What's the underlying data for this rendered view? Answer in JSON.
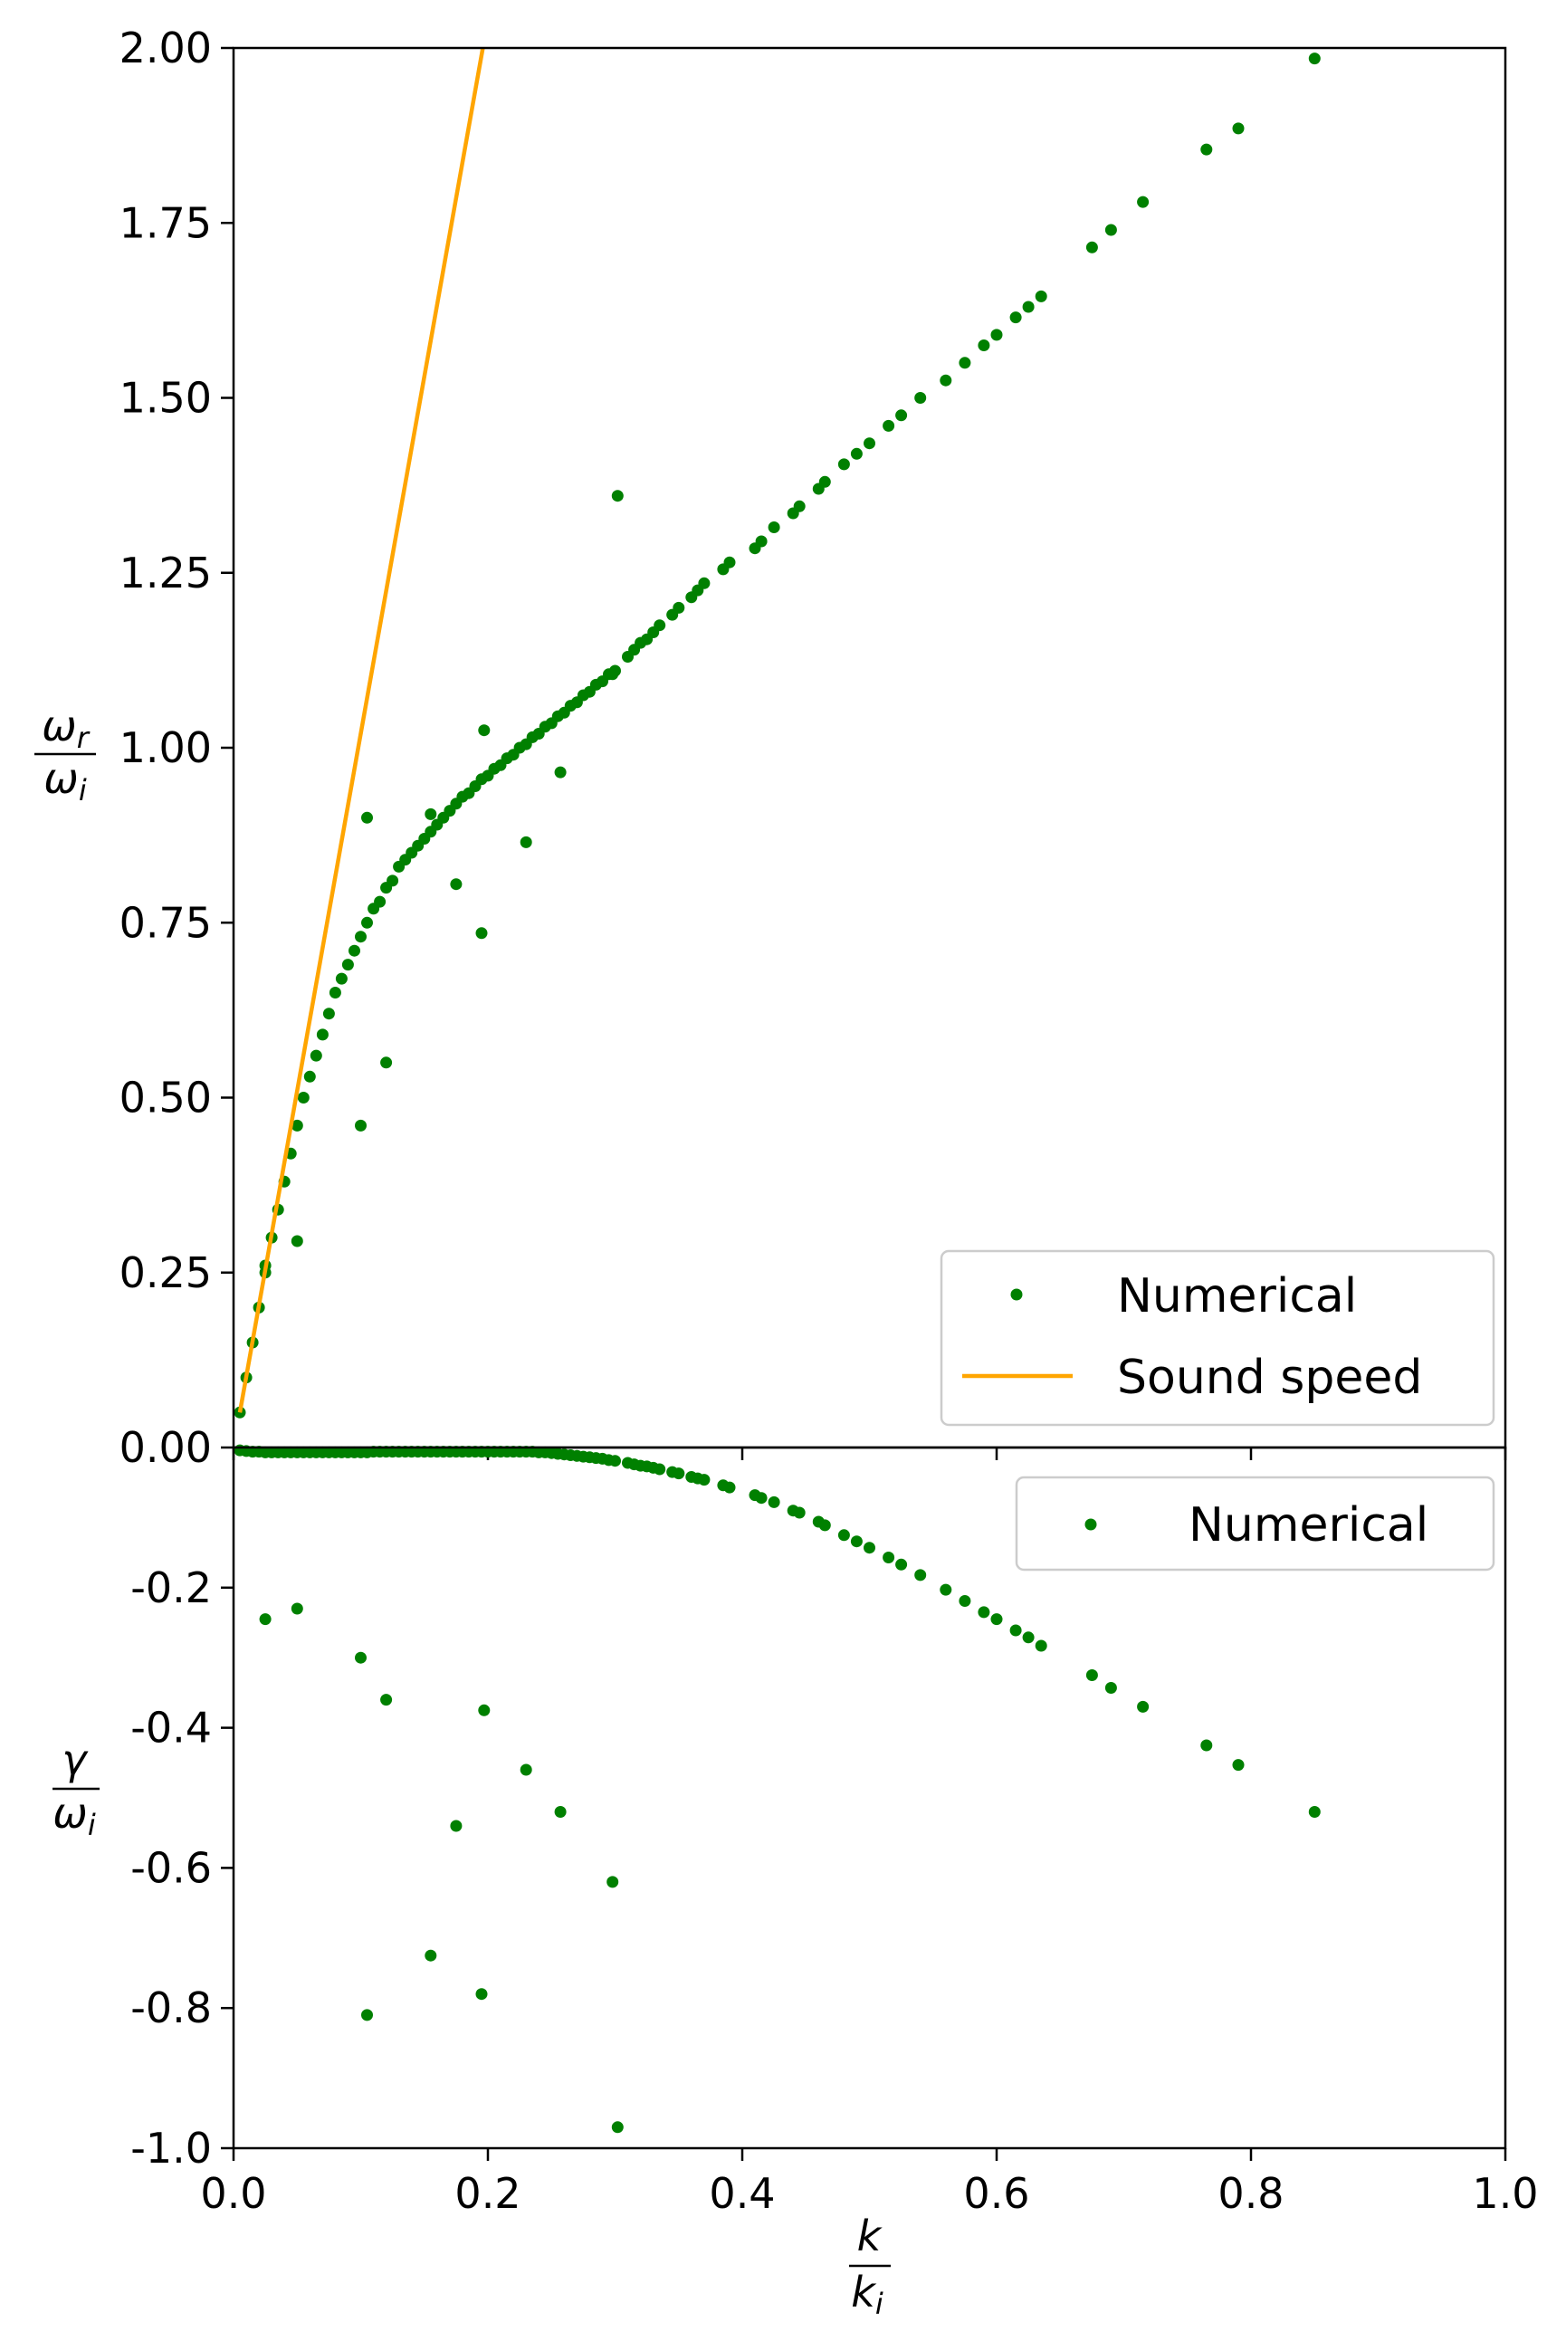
{
  "figure": {
    "top_ylabel": {
      "num_base": "ω",
      "num_sub": "r",
      "den_base": "ω",
      "den_sub": "i"
    },
    "bottom_ylabel": {
      "num_base": "γ",
      "num_sub": "",
      "den_base": "ω",
      "den_sub": "i"
    },
    "xlabel": {
      "num_base": "k",
      "num_sub": "",
      "den_base": "k",
      "den_sub": "i"
    }
  },
  "chart_data": [
    {
      "type": "scatter",
      "panel": "top",
      "title": "",
      "xlim": [
        0.0,
        1.0
      ],
      "ylim": [
        0.0,
        2.0
      ],
      "yticks": [
        0.0,
        0.25,
        0.5,
        0.75,
        1.0,
        1.25,
        1.5,
        1.75,
        2.0
      ],
      "ytick_labels": [
        "0.00",
        "0.25",
        "0.50",
        "0.75",
        "1.00",
        "1.25",
        "1.50",
        "1.75",
        "2.00"
      ],
      "grid": false,
      "legend_position": "lower-right",
      "legend": [
        "Numerical",
        "Sound speed"
      ],
      "series": [
        {
          "name": "Numerical",
          "color": "#008000",
          "x": [
            0.005,
            0.01,
            0.015,
            0.02,
            0.025,
            0.03,
            0.035,
            0.04,
            0.045,
            0.05,
            0.055,
            0.06,
            0.065,
            0.07,
            0.075,
            0.08,
            0.085,
            0.09,
            0.095,
            0.1,
            0.105,
            0.11,
            0.115,
            0.12,
            0.125,
            0.13,
            0.135,
            0.14,
            0.145,
            0.15,
            0.155,
            0.16,
            0.165,
            0.17,
            0.175,
            0.18,
            0.185,
            0.19,
            0.195,
            0.2,
            0.205,
            0.21,
            0.215,
            0.22,
            0.225,
            0.23,
            0.235,
            0.24,
            0.245,
            0.25,
            0.255,
            0.26,
            0.265,
            0.27,
            0.275,
            0.28,
            0.285,
            0.29,
            0.295,
            0.3,
            0.31,
            0.315,
            0.32,
            0.325,
            0.33,
            0.335,
            0.345,
            0.35,
            0.36,
            0.365,
            0.37,
            0.385,
            0.39,
            0.41,
            0.415,
            0.425,
            0.44,
            0.445,
            0.46,
            0.465,
            0.48,
            0.49,
            0.5,
            0.515,
            0.525,
            0.54,
            0.56,
            0.575,
            0.59,
            0.6,
            0.615,
            0.625,
            0.635,
            0.675,
            0.69,
            0.715,
            0.765,
            0.79,
            0.85,
            0.025,
            0.05,
            0.1,
            0.105,
            0.12,
            0.155,
            0.175,
            0.195,
            0.197,
            0.23,
            0.257,
            0.298,
            0.302
          ],
          "y": [
            0.05,
            0.1,
            0.15,
            0.2,
            0.25,
            0.3,
            0.34,
            0.38,
            0.42,
            0.46,
            0.5,
            0.53,
            0.56,
            0.59,
            0.62,
            0.65,
            0.67,
            0.69,
            0.71,
            0.73,
            0.75,
            0.77,
            0.78,
            0.8,
            0.81,
            0.83,
            0.84,
            0.85,
            0.86,
            0.87,
            0.88,
            0.89,
            0.9,
            0.91,
            0.92,
            0.93,
            0.935,
            0.945,
            0.955,
            0.96,
            0.97,
            0.975,
            0.985,
            0.99,
            1.0,
            1.005,
            1.015,
            1.02,
            1.03,
            1.035,
            1.045,
            1.05,
            1.06,
            1.065,
            1.075,
            1.08,
            1.09,
            1.095,
            1.105,
            1.11,
            1.13,
            1.14,
            1.15,
            1.155,
            1.165,
            1.175,
            1.19,
            1.2,
            1.215,
            1.225,
            1.235,
            1.255,
            1.265,
            1.285,
            1.295,
            1.315,
            1.335,
            1.345,
            1.37,
            1.38,
            1.405,
            1.42,
            1.435,
            1.46,
            1.475,
            1.5,
            1.525,
            1.55,
            1.575,
            1.59,
            1.615,
            1.63,
            1.645,
            1.715,
            1.74,
            1.78,
            1.855,
            1.885,
            1.985,
            0.26,
            0.295,
            0.46,
            0.9,
            0.55,
            0.905,
            0.805,
            0.735,
            1.025,
            0.865,
            0.965,
            1.105,
            1.36
          ]
        },
        {
          "name": "Sound speed",
          "color": "#FFA500",
          "x": [
            0.005,
            0.196
          ],
          "y": [
            0.05,
            2.0
          ]
        }
      ]
    },
    {
      "type": "scatter",
      "panel": "bottom",
      "title": "",
      "xlim": [
        0.0,
        1.0
      ],
      "ylim": [
        -1.0,
        0.0
      ],
      "xticks": [
        0.0,
        0.2,
        0.4,
        0.6,
        0.8,
        1.0
      ],
      "xtick_labels": [
        "0.0",
        "0.2",
        "0.4",
        "0.6",
        "0.8",
        "1.0"
      ],
      "yticks": [
        -0.2,
        -0.4,
        -0.6,
        -0.8,
        -1.0
      ],
      "ytick_labels": [
        "-0.2",
        "-0.4",
        "-0.6",
        "-0.8",
        "-1.0"
      ],
      "grid": false,
      "legend_position": "top-right",
      "legend": [
        "Numerical"
      ],
      "series": [
        {
          "name": "Numerical",
          "color": "#008000",
          "x": [
            0.005,
            0.01,
            0.015,
            0.02,
            0.025,
            0.03,
            0.035,
            0.04,
            0.045,
            0.05,
            0.055,
            0.06,
            0.065,
            0.07,
            0.075,
            0.08,
            0.085,
            0.09,
            0.095,
            0.1,
            0.105,
            0.11,
            0.115,
            0.12,
            0.125,
            0.13,
            0.135,
            0.14,
            0.145,
            0.15,
            0.155,
            0.16,
            0.165,
            0.17,
            0.175,
            0.18,
            0.185,
            0.19,
            0.195,
            0.2,
            0.205,
            0.21,
            0.215,
            0.22,
            0.225,
            0.23,
            0.235,
            0.24,
            0.245,
            0.25,
            0.255,
            0.26,
            0.265,
            0.27,
            0.275,
            0.28,
            0.285,
            0.29,
            0.295,
            0.3,
            0.31,
            0.315,
            0.32,
            0.325,
            0.33,
            0.335,
            0.345,
            0.35,
            0.36,
            0.365,
            0.37,
            0.385,
            0.39,
            0.41,
            0.415,
            0.425,
            0.44,
            0.445,
            0.46,
            0.465,
            0.48,
            0.49,
            0.5,
            0.515,
            0.525,
            0.54,
            0.56,
            0.575,
            0.59,
            0.6,
            0.615,
            0.625,
            0.635,
            0.675,
            0.69,
            0.715,
            0.765,
            0.79,
            0.85,
            0.025,
            0.05,
            0.1,
            0.105,
            0.12,
            0.155,
            0.175,
            0.195,
            0.197,
            0.23,
            0.257,
            0.298,
            0.302
          ],
          "y": [
            -0.004,
            -0.005,
            -0.006,
            -0.006,
            -0.007,
            -0.007,
            -0.007,
            -0.007,
            -0.007,
            -0.007,
            -0.007,
            -0.007,
            -0.007,
            -0.007,
            -0.007,
            -0.007,
            -0.007,
            -0.007,
            -0.007,
            -0.007,
            -0.007,
            -0.006,
            -0.006,
            -0.006,
            -0.006,
            -0.006,
            -0.006,
            -0.006,
            -0.006,
            -0.006,
            -0.006,
            -0.006,
            -0.006,
            -0.006,
            -0.006,
            -0.006,
            -0.006,
            -0.006,
            -0.006,
            -0.006,
            -0.006,
            -0.006,
            -0.006,
            -0.006,
            -0.006,
            -0.006,
            -0.006,
            -0.007,
            -0.007,
            -0.008,
            -0.009,
            -0.01,
            -0.011,
            -0.012,
            -0.013,
            -0.014,
            -0.015,
            -0.016,
            -0.018,
            -0.019,
            -0.022,
            -0.024,
            -0.026,
            -0.027,
            -0.029,
            -0.031,
            -0.035,
            -0.037,
            -0.042,
            -0.044,
            -0.046,
            -0.054,
            -0.057,
            -0.068,
            -0.072,
            -0.078,
            -0.09,
            -0.093,
            -0.106,
            -0.111,
            -0.125,
            -0.134,
            -0.143,
            -0.157,
            -0.167,
            -0.182,
            -0.203,
            -0.219,
            -0.235,
            -0.245,
            -0.261,
            -0.271,
            -0.283,
            -0.325,
            -0.343,
            -0.37,
            -0.425,
            -0.453,
            -0.52,
            -0.245,
            -0.23,
            -0.3,
            -0.81,
            -0.36,
            -0.725,
            -0.54,
            -0.78,
            -0.375,
            -0.46,
            -0.52,
            -0.62,
            -0.97
          ]
        }
      ]
    }
  ]
}
